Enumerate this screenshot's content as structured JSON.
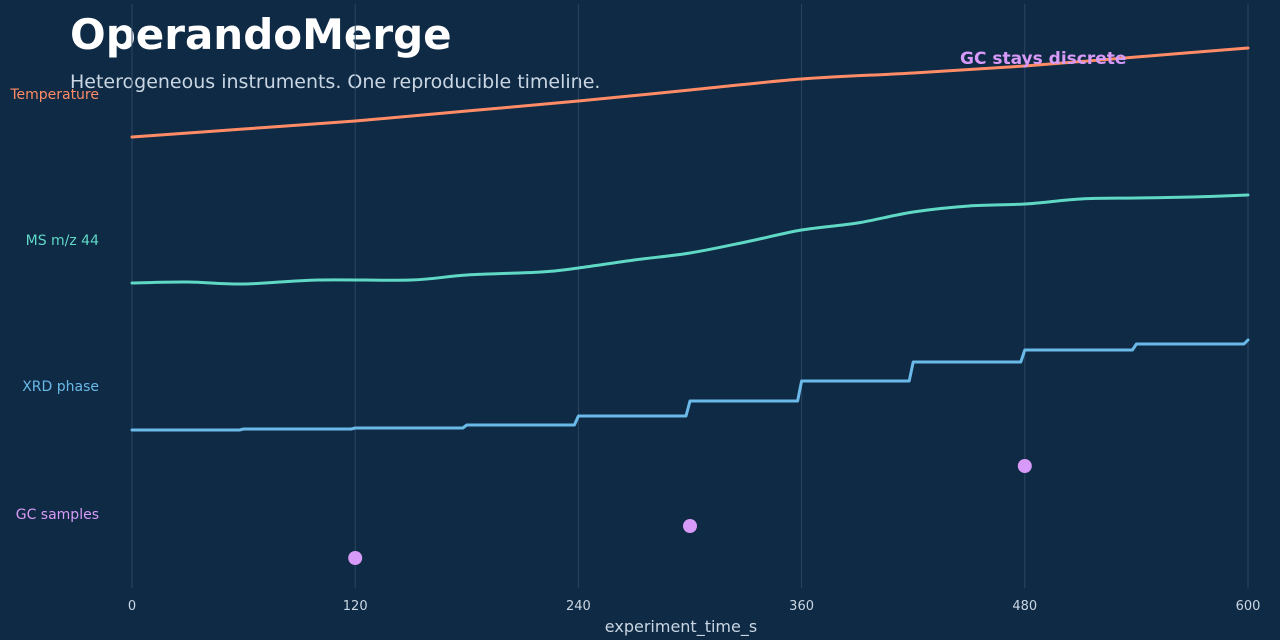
{
  "header": {
    "title": "OperandoMerge",
    "subtitle": "Heterogeneous instruments. One reproducible timeline."
  },
  "chart_data": {
    "type": "line",
    "xlabel": "experiment_time_s",
    "xlim": [
      0,
      600
    ],
    "xticks": [
      0,
      120,
      240,
      360,
      480,
      600
    ],
    "grid": "vertical",
    "series": [
      {
        "name": "Temperature",
        "color": "#ff8c66",
        "style": "smooth",
        "points": [
          [
            0,
            137
          ],
          [
            60,
            129
          ],
          [
            120,
            121
          ],
          [
            180,
            111
          ],
          [
            240,
            101
          ],
          [
            300,
            90
          ],
          [
            360,
            79
          ],
          [
            420,
            73
          ],
          [
            480,
            66
          ],
          [
            540,
            57
          ],
          [
            600,
            48
          ]
        ]
      },
      {
        "name": "MS m/z 44",
        "color": "#5fd8c6",
        "style": "smooth",
        "points": [
          [
            0,
            283
          ],
          [
            30,
            282
          ],
          [
            60,
            284
          ],
          [
            100,
            280
          ],
          [
            150,
            280
          ],
          [
            180,
            275
          ],
          [
            220,
            272
          ],
          [
            240,
            268
          ],
          [
            270,
            260
          ],
          [
            300,
            253
          ],
          [
            330,
            242
          ],
          [
            360,
            230
          ],
          [
            390,
            223
          ],
          [
            420,
            212
          ],
          [
            450,
            206
          ],
          [
            480,
            204
          ],
          [
            510,
            199
          ],
          [
            540,
            198
          ],
          [
            570,
            197
          ],
          [
            600,
            195
          ]
        ]
      },
      {
        "name": "XRD phase",
        "color": "#6ab9e8",
        "style": "step",
        "steps": [
          [
            0,
            430
          ],
          [
            60,
            429
          ],
          [
            120,
            428
          ],
          [
            180,
            425
          ],
          [
            240,
            416
          ],
          [
            300,
            401
          ],
          [
            360,
            381
          ],
          [
            420,
            362
          ],
          [
            480,
            350
          ],
          [
            540,
            344
          ],
          [
            600,
            340
          ]
        ]
      },
      {
        "name": "GC samples",
        "color": "#d89af8",
        "style": "points",
        "points": [
          [
            120,
            558
          ],
          [
            300,
            526
          ],
          [
            480,
            466
          ]
        ]
      }
    ],
    "annotations": [
      {
        "text": "GC stays discrete",
        "color": "#d89af8"
      }
    ]
  }
}
